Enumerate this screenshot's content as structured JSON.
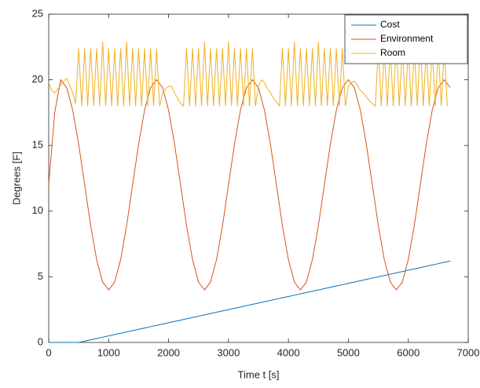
{
  "chart_data": {
    "type": "line",
    "xlabel": "Time t [s]",
    "ylabel": "Degrees [F]",
    "xlim": [
      0,
      7000
    ],
    "xticks": [
      0,
      1000,
      2000,
      3000,
      4000,
      5000,
      6000,
      7000
    ],
    "ylim": [
      0,
      25
    ],
    "yticks": [
      0,
      5,
      10,
      15,
      20,
      25
    ],
    "legend": "upper right",
    "x": [
      0,
      100,
      200,
      300,
      400,
      500,
      600,
      700,
      800,
      900,
      1000,
      1100,
      1200,
      1300,
      1400,
      1500,
      1600,
      1700,
      1800,
      1900,
      2000,
      2100,
      2200,
      2300,
      2400,
      2500,
      2600,
      2700,
      2800,
      2900,
      3000,
      3100,
      3200,
      3300,
      3400,
      3500,
      3600,
      3700,
      3800,
      3900,
      4000,
      4100,
      4200,
      4300,
      4400,
      4500,
      4600,
      4700,
      4800,
      4900,
      5000,
      5100,
      5200,
      5300,
      5400,
      5500,
      5600,
      5700,
      5800,
      5900,
      6000,
      6100,
      6200,
      6300,
      6400,
      6500,
      6600,
      6700
    ],
    "series": [
      {
        "name": "Cost",
        "color": "#0072bd",
        "values": [
          0,
          0,
          0,
          0,
          0,
          0,
          0.1,
          0.2,
          0.3,
          0.4,
          0.5,
          0.6,
          0.7,
          0.8,
          0.9,
          1.0,
          1.1,
          1.2,
          1.3,
          1.4,
          1.5,
          1.6,
          1.7,
          1.8,
          1.9,
          2.0,
          2.1,
          2.2,
          2.3,
          2.4,
          2.5,
          2.6,
          2.7,
          2.8,
          2.9,
          3.0,
          3.1,
          3.2,
          3.3,
          3.4,
          3.5,
          3.6,
          3.7,
          3.8,
          3.9,
          4.0,
          4.1,
          4.2,
          4.3,
          4.4,
          4.5,
          4.6,
          4.7,
          4.8,
          4.9,
          5.0,
          5.1,
          5.2,
          5.3,
          5.4,
          5.5,
          5.6,
          5.7,
          5.8,
          5.9,
          6.0,
          6.1,
          6.2
        ]
      },
      {
        "name": "Environment",
        "color": "#d95319",
        "values": [
          12,
          17.5,
          20,
          19.4,
          17.7,
          15.1,
          12,
          8.9,
          6.3,
          4.6,
          4,
          4.6,
          6.3,
          8.9,
          12,
          15.1,
          17.7,
          19.4,
          20,
          19.4,
          17.7,
          15.1,
          12,
          8.9,
          6.3,
          4.6,
          4,
          4.6,
          6.3,
          8.9,
          12,
          15.1,
          17.7,
          19.4,
          20,
          19.4,
          17.7,
          15.1,
          12,
          8.9,
          6.3,
          4.6,
          4,
          4.6,
          6.3,
          8.9,
          12,
          15.1,
          17.7,
          19.4,
          20,
          19.4,
          17.7,
          15.1,
          12,
          8.9,
          6.3,
          4.6,
          4,
          4.6,
          6.3,
          8.9,
          12,
          15.1,
          17.7,
          19.4,
          20,
          19.4
        ]
      },
      {
        "name": "Room",
        "color": "#edb120",
        "x": [
          0,
          50,
          100,
          150,
          200,
          250,
          300,
          350,
          400,
          450,
          500,
          550,
          600,
          650,
          700,
          750,
          800,
          850,
          900,
          950,
          1000,
          1050,
          1100,
          1150,
          1200,
          1250,
          1300,
          1350,
          1400,
          1450,
          1500,
          1550,
          1600,
          1650,
          1700,
          1750,
          1800,
          1850,
          1900,
          1950,
          2000,
          2050,
          2100,
          2150,
          2200,
          2250,
          2300,
          2350,
          2400,
          2450,
          2500,
          2550,
          2600,
          2650,
          2700,
          2750,
          2800,
          2850,
          2900,
          2950,
          3000,
          3050,
          3100,
          3150,
          3200,
          3250,
          3300,
          3350,
          3400,
          3450,
          3500,
          3550,
          3600,
          3650,
          3700,
          3750,
          3800,
          3850,
          3900,
          3950,
          4000,
          4050,
          4100,
          4150,
          4200,
          4250,
          4300,
          4350,
          4400,
          4450,
          4500,
          4550,
          4600,
          4650,
          4700,
          4750,
          4800,
          4850,
          4900,
          4950,
          5000,
          5050,
          5100,
          5150,
          5200,
          5250,
          5300,
          5350,
          5400,
          5450,
          5500,
          5550,
          5600,
          5650,
          5700,
          5750,
          5800,
          5850,
          5900,
          5950,
          6000,
          6050,
          6100,
          6150,
          6200,
          6250,
          6300,
          6350,
          6400,
          6450,
          6500,
          6550,
          6600,
          6650
        ],
        "values": [
          19.8,
          19.2,
          19,
          19.3,
          19.6,
          19.9,
          20.1,
          19.6,
          19,
          18.2,
          22.4,
          18,
          22.4,
          18,
          22.4,
          18,
          22.4,
          18,
          22.9,
          18,
          22.4,
          18,
          22.4,
          18,
          22.4,
          18,
          22.9,
          18,
          22.4,
          18,
          22.4,
          18,
          22.4,
          18,
          22.4,
          18,
          22.4,
          18,
          19,
          19.3,
          19.5,
          19.5,
          19,
          18.6,
          18.2,
          18,
          22.4,
          18,
          22.4,
          18,
          22.4,
          18,
          22.9,
          18,
          22.4,
          18,
          22.4,
          18,
          22.4,
          18,
          22.9,
          18,
          22.4,
          18,
          22.4,
          18,
          22.4,
          18,
          22.4,
          18,
          19.5,
          20,
          19.8,
          19.3,
          19,
          18.6,
          18.3,
          18,
          22.4,
          18,
          22.4,
          18,
          22.9,
          18,
          22.4,
          18,
          22.4,
          18,
          22.4,
          18,
          22.9,
          18,
          22.4,
          18,
          22.4,
          18,
          22.4,
          18,
          22.4,
          18,
          19.5,
          19.8,
          19.9,
          19.6,
          19.2,
          19,
          18.7,
          18.4,
          18.2,
          18,
          22.4,
          18,
          22.4,
          18,
          22.4,
          18,
          22.9,
          18,
          22.4,
          18,
          22.4,
          18,
          22.4,
          18,
          22.9,
          18,
          22.4,
          18,
          22.4,
          18,
          22.4,
          18,
          22.4,
          18
        ]
      }
    ]
  }
}
